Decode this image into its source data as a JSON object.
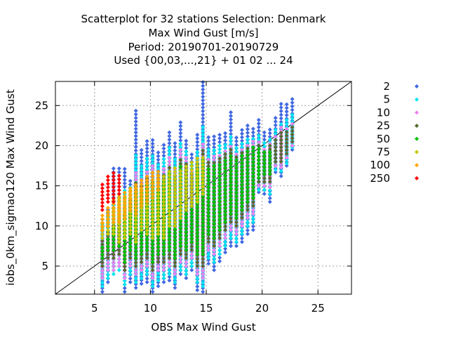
{
  "chart_data": {
    "type": "scatter",
    "title_lines": [
      "Scatterplot for   32 stations Selection: Denmark",
      "Max Wind Gust [m/s]",
      "Period: 20190701-20190729",
      "Used {00,03,...,21} + 01 02 ... 24"
    ],
    "xlabel": "OBS Max Wind Gust",
    "ylabel": "iobs_0km_sigmao120 Max Wind Gust",
    "xlim": [
      1.5,
      28
    ],
    "ylim": [
      1.5,
      28
    ],
    "xticks": [
      5,
      10,
      15,
      20,
      25
    ],
    "yticks": [
      5,
      10,
      15,
      20,
      25
    ],
    "grid": true,
    "diagonal": true,
    "legend_position": "right",
    "x_values": [
      5.7,
      6.2,
      6.7,
      7.2,
      7.7,
      8.2,
      8.7,
      9.2,
      9.7,
      10.2,
      10.7,
      11.2,
      11.7,
      12.2,
      12.7,
      13.2,
      13.7,
      14.2,
      14.7,
      15.2,
      15.7,
      16.2,
      16.7,
      17.2,
      17.7,
      18.2,
      18.7,
      19.2,
      19.7,
      20.2,
      20.7,
      21.2,
      21.7,
      22.2,
      22.7
    ],
    "series": [
      {
        "name": "2",
        "color": "#4169e1",
        "ranges": [
          [
            1.8,
            11.2
          ],
          [
            3,
            12.3
          ],
          [
            5,
            17.3
          ],
          [
            5,
            17.3
          ],
          [
            1.8,
            17.3
          ],
          [
            3,
            16
          ],
          [
            2.3,
            24.7
          ],
          [
            2.8,
            19.5
          ],
          [
            3,
            20.7
          ],
          [
            1.8,
            20.8
          ],
          [
            2.5,
            19.3
          ],
          [
            3,
            20.3
          ],
          [
            3.2,
            21.8
          ],
          [
            2.3,
            20.3
          ],
          [
            4,
            23.2
          ],
          [
            3.5,
            21
          ],
          [
            4.5,
            19.3
          ],
          [
            2,
            21.5
          ],
          [
            1.8,
            28
          ],
          [
            5.3,
            21.3
          ],
          [
            4.5,
            21.2
          ],
          [
            5.6,
            21.5
          ],
          [
            6.7,
            21.8
          ],
          [
            7.5,
            24.2
          ],
          [
            7.5,
            21
          ],
          [
            8,
            22
          ],
          [
            9,
            22.5
          ],
          [
            9.5,
            22.5
          ],
          [
            14.2,
            23.5
          ],
          [
            14,
            21.8
          ],
          [
            13,
            22
          ],
          [
            16.7,
            23.8
          ],
          [
            16.2,
            25.5
          ],
          [
            17.5,
            25.3
          ],
          [
            19.5,
            25.8
          ]
        ]
      },
      {
        "name": "5",
        "color": "#00e5ee",
        "ranges": [
          [
            2.5,
            10.5
          ],
          [
            3.5,
            11.3
          ],
          [
            4,
            13.5
          ],
          [
            4.5,
            14.3
          ],
          [
            2.7,
            14.8
          ],
          [
            4,
            15.2
          ],
          [
            3,
            18.8
          ],
          [
            3.5,
            17.5
          ],
          [
            4,
            18.5
          ],
          [
            2.5,
            18.8
          ],
          [
            3.2,
            17.8
          ],
          [
            3.5,
            18.5
          ],
          [
            4,
            19.8
          ],
          [
            3,
            18.5
          ],
          [
            4.5,
            20.5
          ],
          [
            4,
            19.5
          ],
          [
            5,
            18
          ],
          [
            3,
            19.5
          ],
          [
            2.5,
            22.5
          ],
          [
            6,
            19.5
          ],
          [
            5.5,
            19.8
          ],
          [
            6.5,
            20
          ],
          [
            7.5,
            20.2
          ],
          [
            8.5,
            21.5
          ],
          [
            8,
            20
          ],
          [
            9,
            20.5
          ],
          [
            10,
            21
          ],
          [
            10.5,
            21.2
          ],
          [
            14.5,
            21.5
          ],
          [
            14.5,
            20.5
          ],
          [
            14,
            20.8
          ],
          [
            17,
            22
          ],
          [
            16.8,
            23
          ],
          [
            17.8,
            23.5
          ],
          [
            19.8,
            24
          ]
        ]
      },
      {
        "name": "10",
        "color": "#ee82ee",
        "ranges": [
          [
            3.5,
            9.5
          ],
          [
            4.5,
            10.5
          ],
          [
            4.5,
            12.5
          ],
          [
            5,
            13
          ],
          [
            3.5,
            13.5
          ],
          [
            5,
            14.5
          ],
          [
            4,
            16.8
          ],
          [
            4.5,
            16
          ],
          [
            5,
            17
          ],
          [
            3.5,
            17.5
          ],
          [
            4.5,
            16.5
          ],
          [
            4.5,
            17.3
          ],
          [
            5,
            18.5
          ],
          [
            4,
            17.2
          ],
          [
            5.5,
            19.5
          ],
          [
            5,
            18.5
          ],
          [
            6,
            17
          ],
          [
            4,
            18.5
          ],
          [
            3.5,
            20.5
          ],
          [
            7,
            18.5
          ],
          [
            6.5,
            18.8
          ],
          [
            7.5,
            19
          ],
          [
            8.5,
            19.5
          ],
          [
            9.5,
            20
          ],
          [
            9,
            19.2
          ],
          [
            10,
            19.8
          ],
          [
            11,
            20.3
          ],
          [
            11.5,
            20.5
          ],
          [
            15,
            20.8
          ],
          [
            15,
            19.8
          ],
          [
            14.8,
            20.3
          ],
          [
            17.5,
            21.5
          ],
          [
            17.3,
            22.5
          ],
          [
            18.5,
            22.5
          ],
          [
            20,
            23
          ]
        ]
      },
      {
        "name": "25",
        "color": "#556b2f",
        "ranges": [
          [
            5,
            8.5
          ],
          [
            6,
            9.5
          ],
          [
            6,
            11
          ],
          [
            6.5,
            12
          ],
          [
            4.5,
            12.5
          ],
          [
            6,
            13.5
          ],
          [
            5,
            15.5
          ],
          [
            5.5,
            15
          ],
          [
            6,
            16
          ],
          [
            4.5,
            16.5
          ],
          [
            5.5,
            15.5
          ],
          [
            5.5,
            16.5
          ],
          [
            6,
            17.5
          ],
          [
            5,
            16.5
          ],
          [
            6.5,
            18.5
          ],
          [
            6,
            17.8
          ],
          [
            7,
            16.5
          ],
          [
            5,
            17.8
          ],
          [
            5,
            19.5
          ],
          [
            8,
            18
          ],
          [
            7.5,
            18.2
          ],
          [
            8.5,
            18.5
          ],
          [
            9.5,
            19
          ],
          [
            10.5,
            19.5
          ],
          [
            10,
            18.8
          ],
          [
            11,
            19.5
          ],
          [
            12,
            19.8
          ],
          [
            12.5,
            20
          ],
          [
            15.5,
            20.3
          ],
          [
            15.5,
            19.5
          ],
          [
            15.5,
            20
          ],
          [
            18,
            21
          ],
          [
            18,
            22
          ],
          [
            19,
            22
          ],
          [
            20.5,
            22.5
          ]
        ]
      },
      {
        "name": "50",
        "color": "#00c000",
        "ranges": [
          [
            6,
            7.5
          ],
          [
            7,
            8.5
          ],
          [
            7,
            9.8
          ],
          [
            7.5,
            11
          ],
          [
            5.5,
            11.5
          ],
          [
            7,
            12.5
          ],
          [
            6,
            14.5
          ],
          [
            6.5,
            14.2
          ],
          [
            7,
            15.2
          ],
          [
            5.5,
            15.8
          ],
          [
            6.5,
            14.8
          ],
          [
            6.5,
            15.8
          ],
          [
            7,
            16.8
          ],
          [
            6,
            16
          ],
          [
            7.5,
            17.8
          ],
          [
            7,
            17.2
          ],
          [
            8,
            16
          ],
          [
            6.5,
            17.2
          ],
          [
            6.5,
            18.5
          ],
          [
            9,
            17.5
          ],
          [
            8.5,
            17.8
          ],
          [
            9.5,
            18
          ],
          [
            10.5,
            18.5
          ],
          [
            11.5,
            19
          ],
          [
            11,
            18.5
          ],
          [
            12,
            19
          ],
          [
            13,
            19.5
          ],
          [
            13.5,
            19.8
          ],
          [
            16,
            20
          ],
          [
            16.5,
            19.2
          ],
          [
            16.5,
            19.5
          ]
        ]
      },
      {
        "name": "75",
        "color": "#c8c800",
        "ranges": [
          [
            8.5,
            10.5
          ],
          [
            9,
            12
          ],
          [
            9,
            12.5
          ],
          [
            8,
            13.5
          ],
          [
            8.5,
            13.8
          ],
          [
            9,
            14.5
          ],
          [
            8,
            15
          ],
          [
            9.5,
            14.5
          ],
          [
            9,
            15.5
          ],
          [
            8.5,
            16
          ],
          [
            9,
            16.5
          ],
          [
            8.5,
            16.5
          ],
          [
            10,
            17
          ],
          [
            10,
            17.3
          ],
          [
            11,
            17
          ],
          [
            12,
            17.5
          ],
          [
            12.5,
            18
          ],
          [
            13,
            18.5
          ],
          [
            14,
            18.5
          ]
        ]
      },
      {
        "name": "100",
        "color": "#ffa500",
        "ranges": [
          [
            9.5,
            11.5
          ],
          [
            10,
            12.5
          ],
          [
            10.5,
            13.5
          ],
          [
            10.5,
            14
          ],
          [
            11,
            14.5
          ],
          [
            12,
            15
          ],
          [
            11.5,
            15.5
          ],
          [
            12.5,
            16
          ],
          [
            13,
            16.5
          ],
          [
            13.5,
            17
          ],
          [
            14.5,
            17
          ]
        ]
      },
      {
        "name": "250",
        "color": "#ff0000",
        "ranges": [
          [
            12,
            15.5
          ],
          [
            13,
            16.5
          ],
          [
            13,
            17
          ],
          [
            14,
            16.5
          ]
        ]
      }
    ]
  }
}
